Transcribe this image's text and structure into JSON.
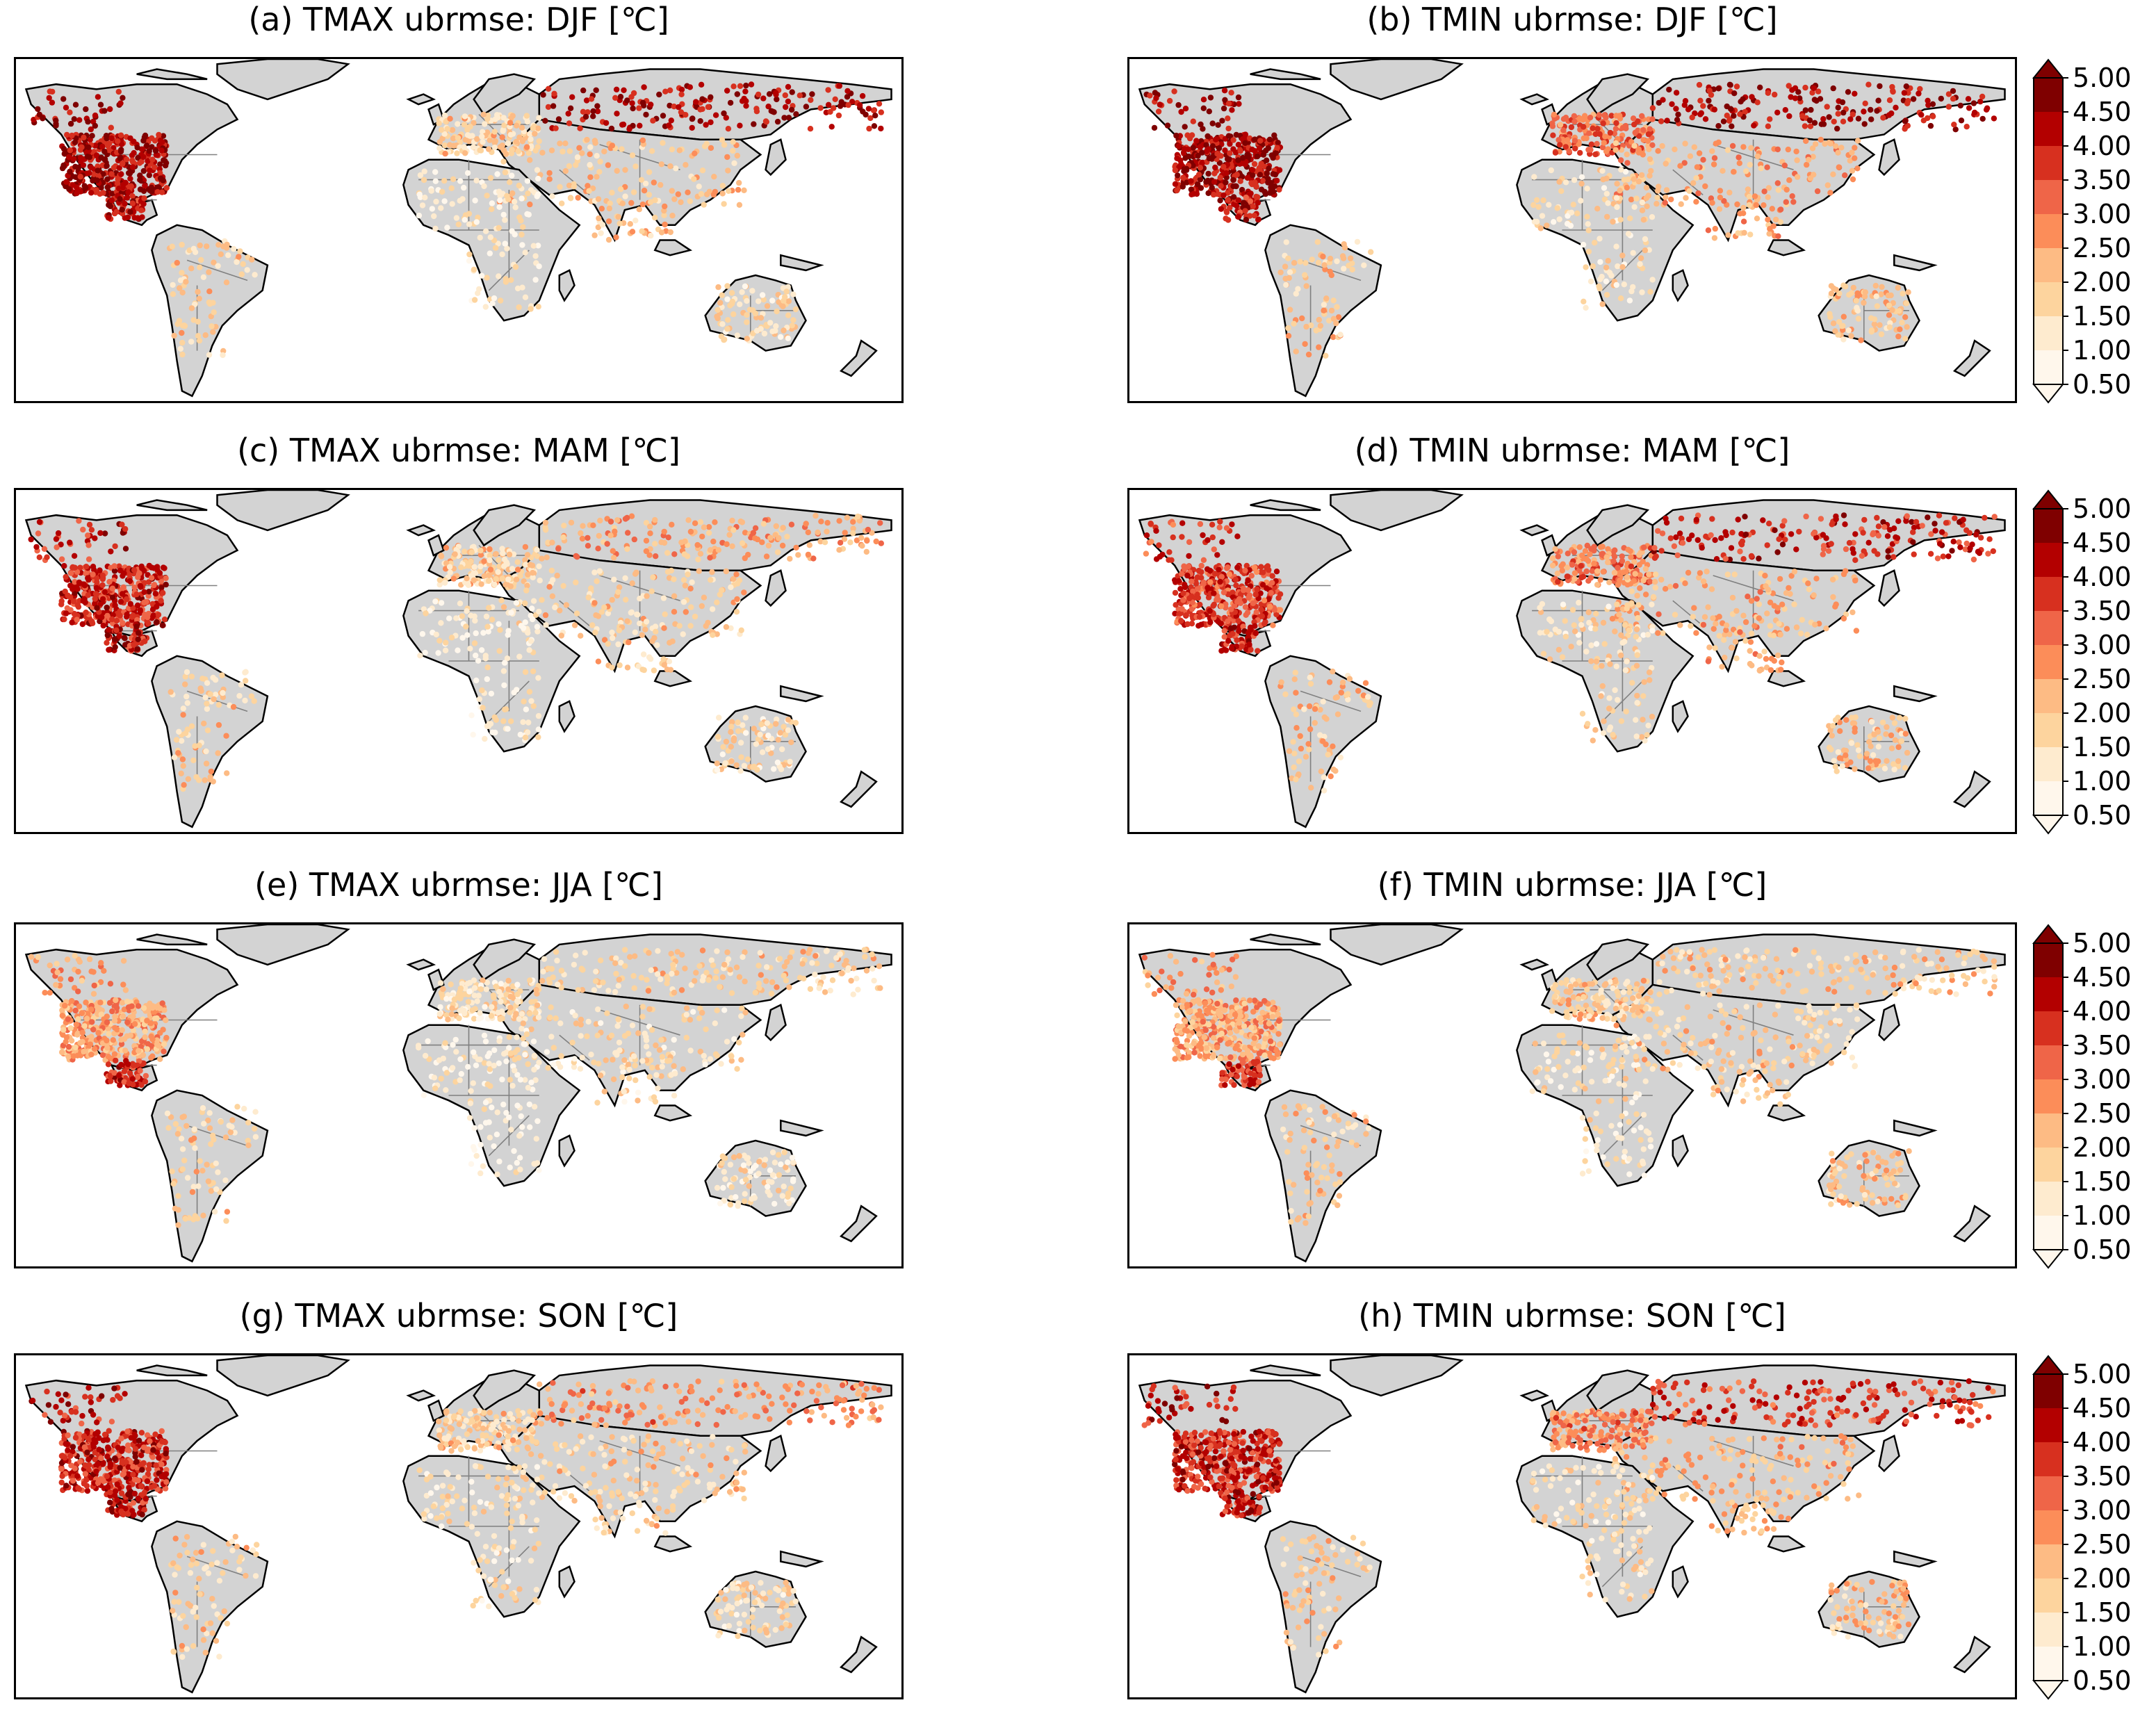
{
  "figure": {
    "panels": [
      {
        "id": "a",
        "title": "(a) TMAX ubrmse: DJF [℃]",
        "variable": "TMAX",
        "season": "DJF",
        "intensity": {
          "northamerica": 0.85,
          "mexico": 0.8,
          "europe": 0.3,
          "siberia": 0.85,
          "africa": 0.15,
          "asia": 0.35,
          "southamerica": 0.3,
          "australia": 0.25
        }
      },
      {
        "id": "b",
        "title": "(b) TMIN ubrmse: DJF [℃]",
        "variable": "TMIN",
        "season": "DJF",
        "intensity": {
          "northamerica": 0.85,
          "mexico": 0.8,
          "europe": 0.6,
          "siberia": 0.85,
          "africa": 0.25,
          "asia": 0.45,
          "southamerica": 0.35,
          "australia": 0.35
        }
      },
      {
        "id": "c",
        "title": "(c) TMAX ubrmse: MAM [℃]",
        "variable": "TMAX",
        "season": "MAM",
        "intensity": {
          "northamerica": 0.75,
          "mexico": 0.8,
          "europe": 0.3,
          "siberia": 0.45,
          "africa": 0.15,
          "asia": 0.3,
          "southamerica": 0.3,
          "australia": 0.25
        }
      },
      {
        "id": "d",
        "title": "(d) TMIN ubrmse: MAM [℃]",
        "variable": "TMIN",
        "season": "MAM",
        "intensity": {
          "northamerica": 0.7,
          "mexico": 0.75,
          "europe": 0.55,
          "siberia": 0.75,
          "africa": 0.25,
          "asia": 0.4,
          "southamerica": 0.35,
          "australia": 0.35
        }
      },
      {
        "id": "e",
        "title": "(e) TMAX ubrmse: JJA [℃]",
        "variable": "TMAX",
        "season": "JJA",
        "intensity": {
          "northamerica": 0.45,
          "mexico": 0.75,
          "europe": 0.25,
          "siberia": 0.3,
          "africa": 0.1,
          "asia": 0.25,
          "southamerica": 0.3,
          "australia": 0.2
        }
      },
      {
        "id": "f",
        "title": "(f) TMIN ubrmse: JJA [℃]",
        "variable": "TMIN",
        "season": "JJA",
        "intensity": {
          "northamerica": 0.45,
          "mexico": 0.7,
          "europe": 0.3,
          "siberia": 0.3,
          "africa": 0.2,
          "asia": 0.3,
          "southamerica": 0.35,
          "australia": 0.35
        }
      },
      {
        "id": "g",
        "title": "(g) TMAX ubrmse: SON [℃]",
        "variable": "TMAX",
        "season": "SON",
        "intensity": {
          "northamerica": 0.75,
          "mexico": 0.8,
          "europe": 0.3,
          "siberia": 0.5,
          "africa": 0.2,
          "asia": 0.3,
          "southamerica": 0.3,
          "australia": 0.25
        }
      },
      {
        "id": "h",
        "title": "(h) TMIN ubrmse: SON [℃]",
        "variable": "TMIN",
        "season": "SON",
        "intensity": {
          "northamerica": 0.75,
          "mexico": 0.75,
          "europe": 0.5,
          "siberia": 0.7,
          "africa": 0.25,
          "asia": 0.4,
          "southamerica": 0.35,
          "australia": 0.35
        }
      }
    ],
    "colorbar": {
      "ticks": [
        "5.00",
        "4.50",
        "4.00",
        "3.50",
        "3.00",
        "2.50",
        "2.00",
        "1.50",
        "1.00",
        "0.50"
      ],
      "extend": "both",
      "colors": [
        "#fff7ec",
        "#feebcf",
        "#fdd49e",
        "#fdbb84",
        "#fc8d59",
        "#ef6548",
        "#d7301f",
        "#b30000",
        "#7f0000"
      ]
    },
    "land_color": "#d3d3d3",
    "coast_color": "#000000",
    "border_color": "#808080"
  }
}
